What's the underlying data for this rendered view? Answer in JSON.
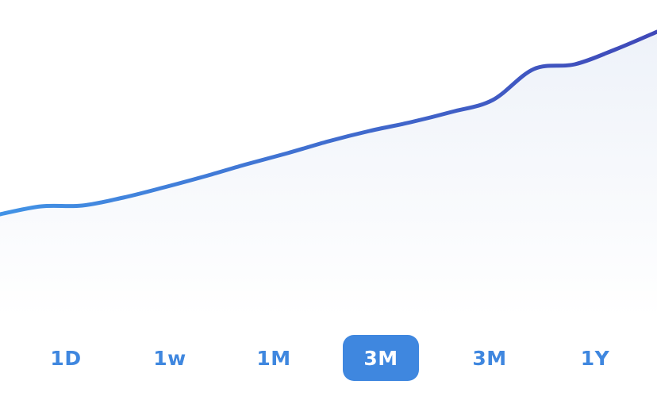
{
  "chart_data": {
    "type": "area",
    "x": [
      0,
      1,
      2,
      3,
      4,
      5,
      6,
      7,
      8,
      9,
      10,
      11,
      12,
      13,
      14,
      15,
      16
    ],
    "values": [
      130,
      140,
      141,
      151,
      164,
      178,
      193,
      207,
      222,
      235,
      246,
      259,
      274,
      313,
      319,
      338,
      360
    ],
    "ylim": [
      0,
      400
    ],
    "grid": false,
    "colors": {
      "line_start": "#4293e6",
      "line_end": "#3f48b8",
      "fill_top": "#eef2f9",
      "fill_bottom": "#ffffff"
    }
  },
  "range_selector": {
    "options": [
      {
        "label": "1D",
        "active": false
      },
      {
        "label": "1w",
        "active": false
      },
      {
        "label": "1M",
        "active": false
      },
      {
        "label": "3M",
        "active": true
      },
      {
        "label": "3M",
        "active": false
      },
      {
        "label": "1Y",
        "active": false
      }
    ],
    "accent": "#3f87df"
  }
}
